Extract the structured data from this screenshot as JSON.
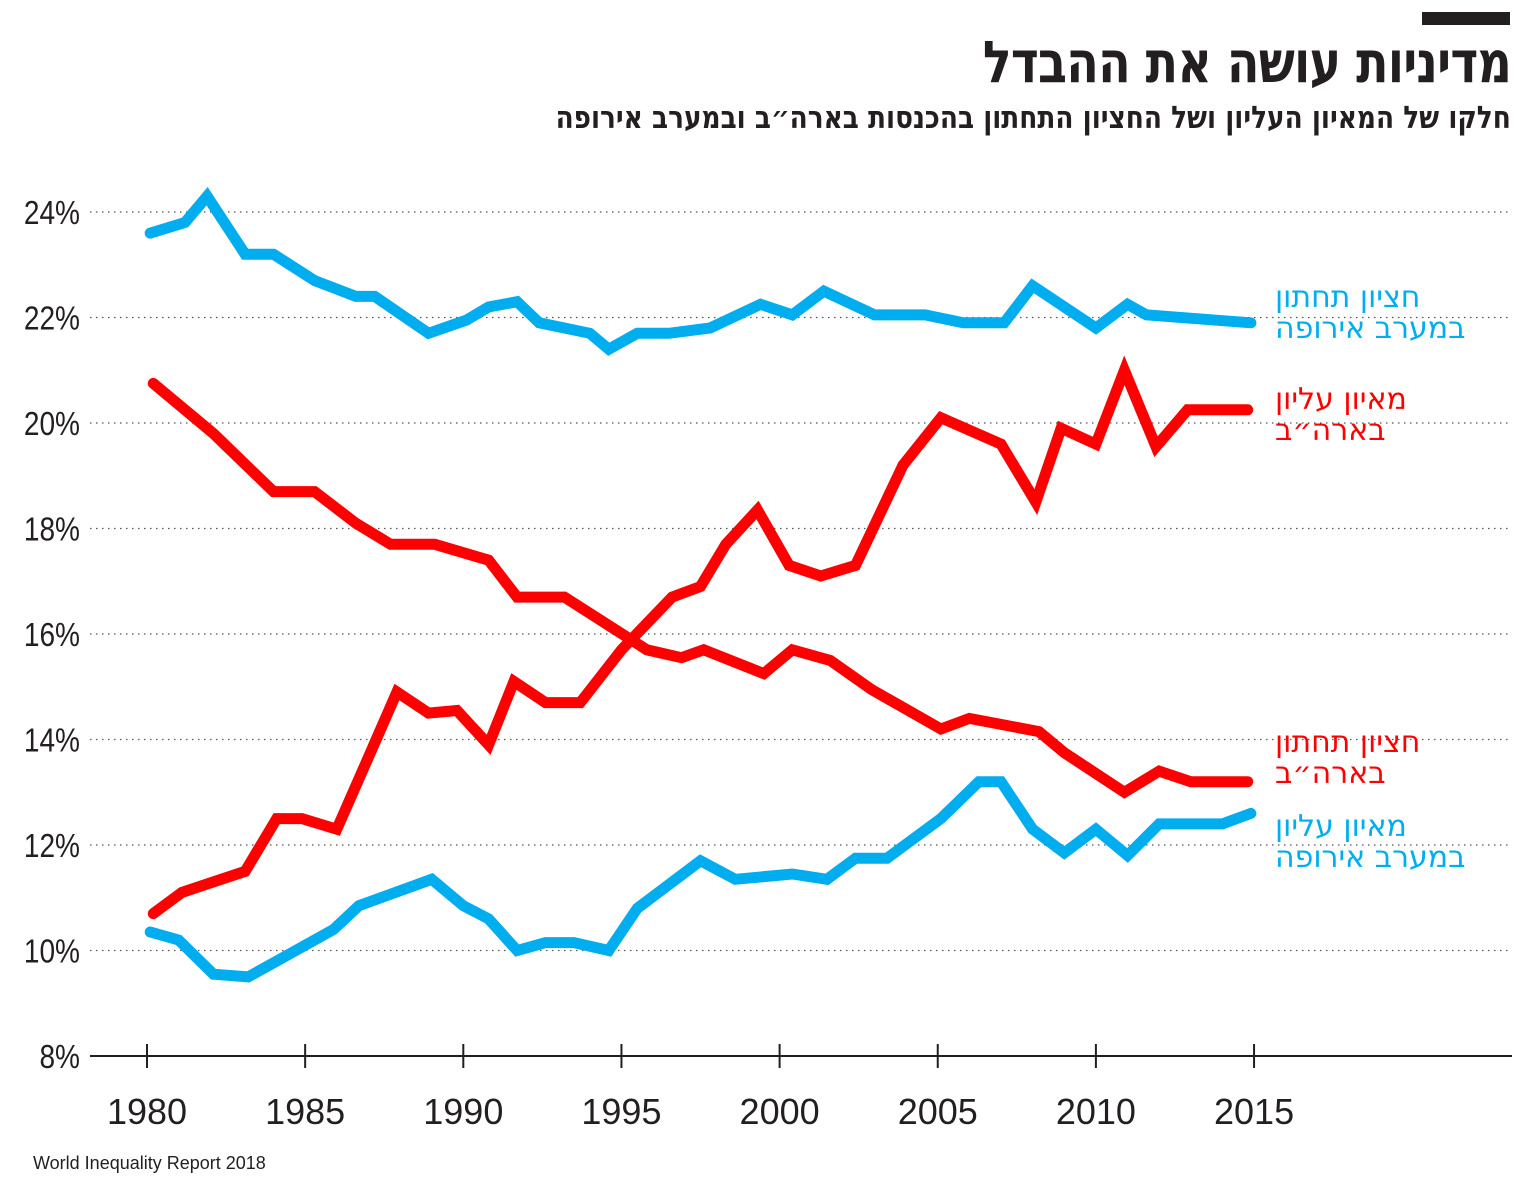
{
  "header": {
    "title": "מדיניות עושה את ההבדל",
    "subtitle": "חלקו של המאיון העליון ושל החציון התחתון בהכנסות בארה״ב ובמערב אירופה"
  },
  "source": "World Inequality Report 2018",
  "chart_data": {
    "type": "line",
    "title": "מדיניות עושה את ההבדל",
    "subtitle": "חלקו של המאיון העליון ושל החציון התחתון בהכנסות בארה״ב ובמערב אירופה",
    "xlabel": "",
    "ylabel": "",
    "xlim": [
      1978,
      2023
    ],
    "ylim": [
      8,
      24
    ],
    "x_ticks": [
      1980,
      1985,
      1990,
      1995,
      2000,
      2005,
      2010,
      2015
    ],
    "x_tick_labels": [
      "1980",
      "1985",
      "1990",
      "1995",
      "2000",
      "2005",
      "2010",
      "2015"
    ],
    "y_ticks": [
      8,
      10,
      12,
      14,
      16,
      18,
      20,
      22,
      24
    ],
    "y_tick_labels": [
      "8%",
      "10%",
      "12%",
      "14%",
      "16%",
      "18%",
      "20%",
      "22%",
      "24%"
    ],
    "grid": "horizontal dotted",
    "legend": "direct labels at right end of lines",
    "series": [
      {
        "name": "חציון תחתון במערב אירופה",
        "label_lines": [
          "חציון תחתון",
          "במערב אירופה"
        ],
        "color": "#00AEEF",
        "points": [
          [
            1980.1,
            23.6
          ],
          [
            1981.2,
            23.8
          ],
          [
            1981.9,
            24.3
          ],
          [
            1983.1,
            23.2
          ],
          [
            1984.0,
            23.2
          ],
          [
            1985.3,
            22.7
          ],
          [
            1986.6,
            22.4
          ],
          [
            1987.2,
            22.4
          ],
          [
            1988.9,
            21.7
          ],
          [
            1990.1,
            21.95
          ],
          [
            1990.8,
            22.2
          ],
          [
            1991.7,
            22.3
          ],
          [
            1992.4,
            21.9
          ],
          [
            1994.0,
            21.7
          ],
          [
            1994.6,
            21.4
          ],
          [
            1995.5,
            21.7
          ],
          [
            1996.5,
            21.7
          ],
          [
            1997.8,
            21.8
          ],
          [
            1999.4,
            22.25
          ],
          [
            2000.4,
            22.05
          ],
          [
            2001.4,
            22.5
          ],
          [
            2003.0,
            22.05
          ],
          [
            2004.6,
            22.05
          ],
          [
            2005.8,
            21.9
          ],
          [
            2007.1,
            21.9
          ],
          [
            2008.0,
            22.6
          ],
          [
            2010.0,
            21.8
          ],
          [
            2011.0,
            22.25
          ],
          [
            2011.6,
            22.05
          ],
          [
            2014.9,
            21.9
          ]
        ]
      },
      {
        "name": "מאיון עליון בארה״ב",
        "label_lines": [
          "מאיון עליון",
          "בארה״ב"
        ],
        "color": "#FF0000",
        "points": [
          [
            1980.2,
            10.7
          ],
          [
            1981.1,
            11.1
          ],
          [
            1982.1,
            11.3
          ],
          [
            1983.1,
            11.5
          ],
          [
            1984.1,
            12.5
          ],
          [
            1984.9,
            12.5
          ],
          [
            1986.0,
            12.3
          ],
          [
            1987.1,
            13.8
          ],
          [
            1987.9,
            14.9
          ],
          [
            1988.9,
            14.5
          ],
          [
            1989.8,
            14.55
          ],
          [
            1990.8,
            13.9
          ],
          [
            1991.6,
            15.1
          ],
          [
            1992.6,
            14.7
          ],
          [
            1993.7,
            14.7
          ],
          [
            1995.0,
            15.7
          ],
          [
            1996.6,
            16.7
          ],
          [
            1997.5,
            16.9
          ],
          [
            1998.3,
            17.7
          ],
          [
            1999.3,
            18.35
          ],
          [
            2000.3,
            17.3
          ],
          [
            2001.3,
            17.1
          ],
          [
            2002.4,
            17.3
          ],
          [
            2003.9,
            19.2
          ],
          [
            2005.1,
            20.1
          ],
          [
            2007.0,
            19.6
          ],
          [
            2008.1,
            18.5
          ],
          [
            2008.9,
            19.9
          ],
          [
            2010.0,
            19.6
          ],
          [
            2010.9,
            21.0
          ],
          [
            2011.9,
            19.55
          ],
          [
            2012.9,
            20.25
          ],
          [
            2014.8,
            20.25
          ]
        ]
      },
      {
        "name": "חציון תחתון בארה״ב",
        "label_lines": [
          "חציון תחתון",
          "בארה״ב"
        ],
        "color": "#FF0000",
        "points": [
          [
            1980.2,
            20.75
          ],
          [
            1982.1,
            19.8
          ],
          [
            1984.0,
            18.7
          ],
          [
            1985.3,
            18.7
          ],
          [
            1986.6,
            18.1
          ],
          [
            1987.7,
            17.7
          ],
          [
            1989.1,
            17.7
          ],
          [
            1990.8,
            17.4
          ],
          [
            1991.7,
            16.7
          ],
          [
            1993.2,
            16.7
          ],
          [
            1995.8,
            15.7
          ],
          [
            1996.9,
            15.55
          ],
          [
            1997.6,
            15.7
          ],
          [
            1999.5,
            15.25
          ],
          [
            2000.4,
            15.7
          ],
          [
            2001.6,
            15.5
          ],
          [
            2002.9,
            14.95
          ],
          [
            2005.1,
            14.2
          ],
          [
            2006.0,
            14.4
          ],
          [
            2008.2,
            14.15
          ],
          [
            2009.0,
            13.75
          ],
          [
            2010.9,
            13.0
          ],
          [
            2012.0,
            13.4
          ],
          [
            2013.0,
            13.2
          ],
          [
            2014.8,
            13.2
          ]
        ]
      },
      {
        "name": "מאיון עליון במערב אירופה",
        "label_lines": [
          "מאיון עליון",
          "במערב אירופה"
        ],
        "color": "#00AEEF",
        "points": [
          [
            1980.1,
            10.35
          ],
          [
            1981.0,
            10.2
          ],
          [
            1982.1,
            9.55
          ],
          [
            1983.2,
            9.5
          ],
          [
            1984.4,
            9.9
          ],
          [
            1985.9,
            10.4
          ],
          [
            1986.7,
            10.85
          ],
          [
            1989.0,
            11.35
          ],
          [
            1990.0,
            10.85
          ],
          [
            1990.8,
            10.6
          ],
          [
            1991.7,
            10.0
          ],
          [
            1992.6,
            10.15
          ],
          [
            1993.5,
            10.15
          ],
          [
            1994.6,
            10.0
          ],
          [
            1995.5,
            10.8
          ],
          [
            1997.5,
            11.7
          ],
          [
            1998.6,
            11.35
          ],
          [
            2000.4,
            11.45
          ],
          [
            2001.5,
            11.35
          ],
          [
            2002.4,
            11.75
          ],
          [
            2003.4,
            11.75
          ],
          [
            2005.1,
            12.5
          ],
          [
            2006.3,
            13.2
          ],
          [
            2007.0,
            13.2
          ],
          [
            2008.0,
            12.3
          ],
          [
            2009.0,
            11.85
          ],
          [
            2010.0,
            12.3
          ],
          [
            2011.0,
            11.8
          ],
          [
            2012.0,
            12.4
          ],
          [
            2014.0,
            12.4
          ],
          [
            2014.9,
            12.6
          ]
        ]
      }
    ]
  }
}
